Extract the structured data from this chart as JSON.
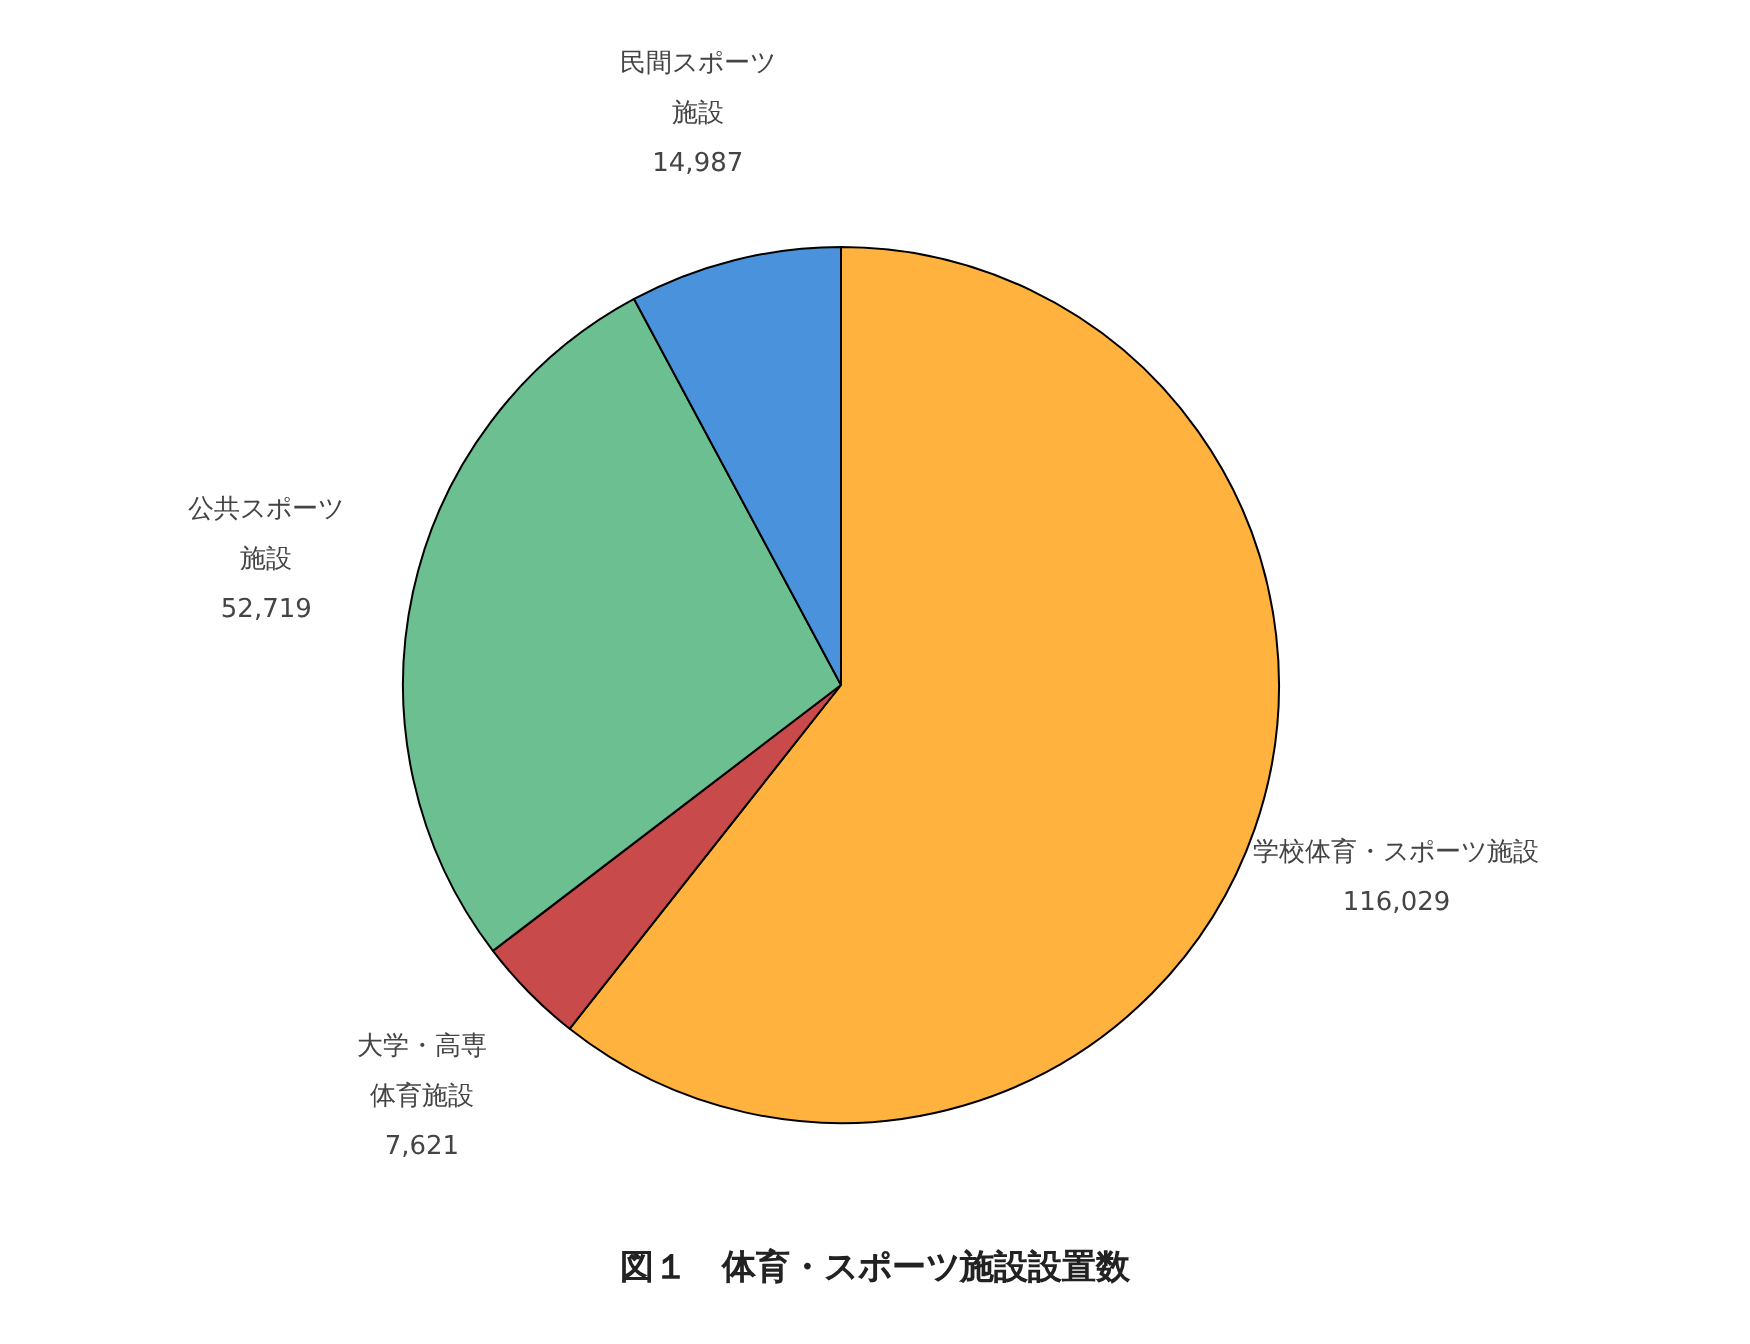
{
  "chart_data": {
    "type": "pie",
    "title": "図１　体育・スポーツ施設設置数",
    "categories": [
      "学校体育・スポーツ施設",
      "大学・高専体育施設",
      "公共スポーツ施設",
      "民間スポーツ施設"
    ],
    "values": [
      116029,
      7621,
      52719,
      14987
    ],
    "value_labels": [
      "116,029",
      "7,621",
      "52,719",
      "14,987"
    ],
    "colors": [
      "#ffb23e",
      "#c84a4a",
      "#6cbf90",
      "#4a92dc"
    ],
    "legend": false
  }
}
